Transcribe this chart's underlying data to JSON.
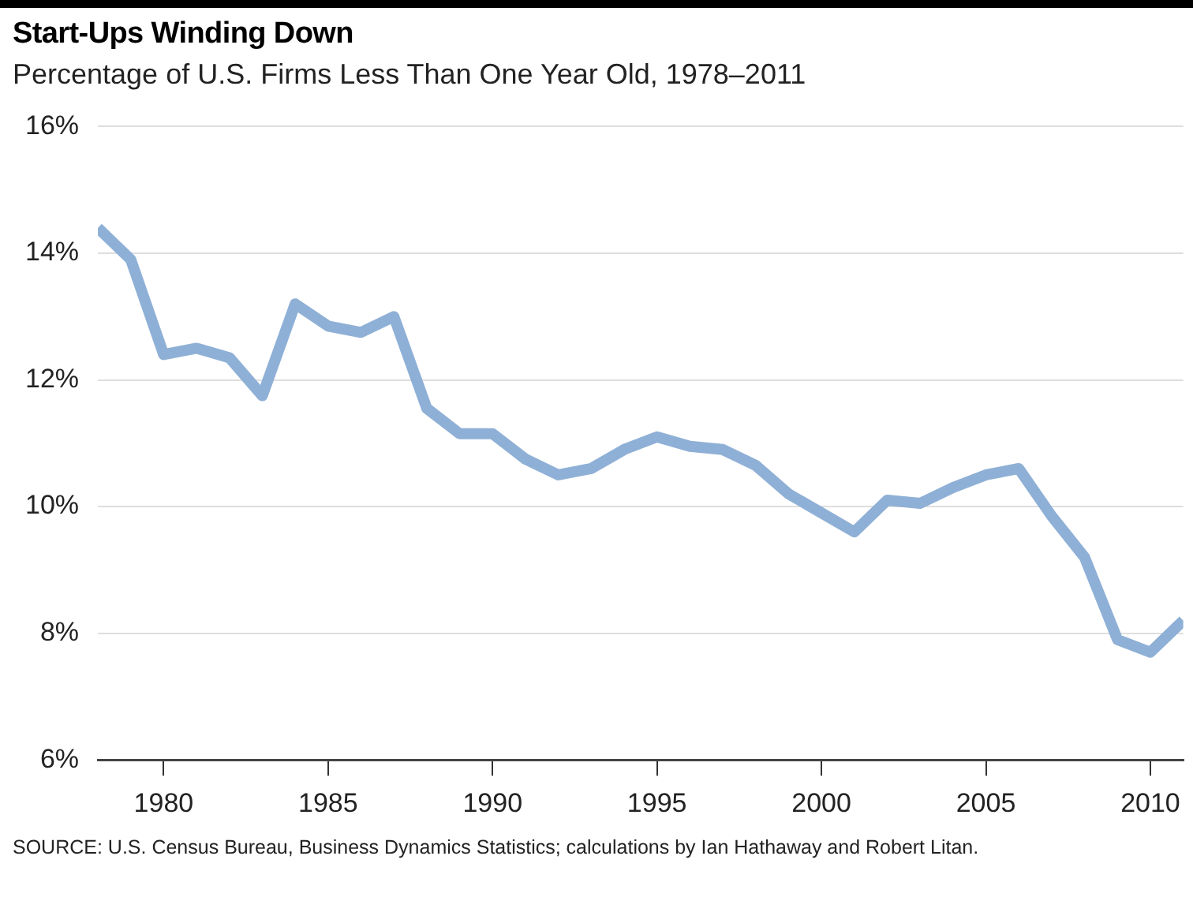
{
  "chart_data": {
    "type": "line",
    "title": "Start-Ups Winding Down",
    "subtitle": "Percentage of U.S. Firms Less Than One Year Old, 1978–2011",
    "x": [
      1978,
      1979,
      1980,
      1981,
      1982,
      1983,
      1984,
      1985,
      1986,
      1987,
      1988,
      1989,
      1990,
      1991,
      1992,
      1993,
      1994,
      1995,
      1996,
      1997,
      1998,
      1999,
      2000,
      2001,
      2002,
      2003,
      2004,
      2005,
      2006,
      2007,
      2008,
      2009,
      2010,
      2011
    ],
    "series": [
      {
        "color": "#8fb0d6",
        "values": [
          14.4,
          13.9,
          12.4,
          12.5,
          12.35,
          11.75,
          13.2,
          12.85,
          12.75,
          13.0,
          11.55,
          11.15,
          11.15,
          10.75,
          10.5,
          10.6,
          10.9,
          11.1,
          10.95,
          10.9,
          10.65,
          10.2,
          9.9,
          9.6,
          10.1,
          10.05,
          10.3,
          10.5,
          10.6,
          9.85,
          9.2,
          7.9,
          7.7,
          8.2
        ]
      }
    ],
    "xlim": [
      1978,
      2011
    ],
    "xticks": [
      1980,
      1985,
      1990,
      1995,
      2000,
      2005,
      2010
    ],
    "ylim": [
      6,
      16
    ],
    "yticks": [
      {
        "value": 6,
        "label": "6%"
      },
      {
        "value": 8,
        "label": "8%"
      },
      {
        "value": 10,
        "label": "10%"
      },
      {
        "value": 12,
        "label": "12%"
      },
      {
        "value": 14,
        "label": "14%"
      },
      {
        "value": 16,
        "label": "16%"
      }
    ],
    "grid": "y",
    "legend": false,
    "marker": "none",
    "line_style": "solid",
    "annotations": [
      "SOURCE: U.S. Census Bureau, Business Dynamics Statistics; calculations by Ian Hathaway and Robert Litan."
    ]
  }
}
